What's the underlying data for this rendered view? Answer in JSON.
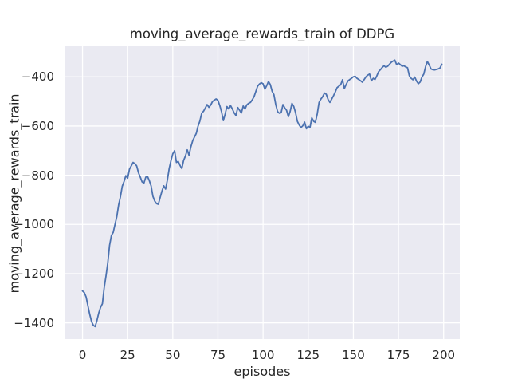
{
  "chart_data": {
    "type": "line",
    "title": "moving_average_rewards_train of DDPG",
    "xlabel": "episodes",
    "ylabel": "moving_average_rewards_train",
    "grid": true,
    "legend": false,
    "xlim": [
      -9.95,
      208.95
    ],
    "ylim": [
      -1466,
      -276
    ],
    "xticks": {
      "values": [
        0,
        25,
        50,
        75,
        100,
        125,
        150,
        175,
        200
      ],
      "labels": [
        "0",
        "25",
        "50",
        "75",
        "100",
        "125",
        "150",
        "175",
        "200"
      ]
    },
    "yticks": {
      "values": [
        -400,
        -600,
        -800,
        -1000,
        -1200,
        -1400
      ],
      "labels": [
        "−400",
        "−600",
        "−800",
        "−1000",
        "−1200",
        "−1400"
      ]
    },
    "style": {
      "axes_bg": "#eaeaf2",
      "grid_color": "#ffffff",
      "line_color": "#4c72b0",
      "text_color": "#262626",
      "figure_bg": "#ffffff"
    },
    "series": [
      {
        "name": "moving_average_rewards_train",
        "color": "#4c72b0",
        "x_start": 0,
        "x_step": 1,
        "values": [
          -1270,
          -1277,
          -1295,
          -1330,
          -1365,
          -1395,
          -1410,
          -1415,
          -1390,
          -1360,
          -1337,
          -1322,
          -1258,
          -1210,
          -1155,
          -1085,
          -1045,
          -1032,
          -1000,
          -968,
          -920,
          -888,
          -845,
          -825,
          -802,
          -812,
          -775,
          -762,
          -748,
          -753,
          -762,
          -790,
          -808,
          -827,
          -832,
          -808,
          -805,
          -822,
          -843,
          -886,
          -905,
          -915,
          -918,
          -890,
          -865,
          -843,
          -856,
          -820,
          -773,
          -740,
          -713,
          -700,
          -748,
          -744,
          -760,
          -773,
          -740,
          -722,
          -697,
          -719,
          -685,
          -660,
          -645,
          -630,
          -600,
          -580,
          -548,
          -540,
          -527,
          -513,
          -524,
          -515,
          -500,
          -495,
          -490,
          -496,
          -517,
          -542,
          -578,
          -552,
          -521,
          -531,
          -517,
          -531,
          -547,
          -557,
          -525,
          -536,
          -547,
          -519,
          -531,
          -514,
          -508,
          -504,
          -494,
          -481,
          -459,
          -438,
          -429,
          -424,
          -428,
          -450,
          -436,
          -419,
          -431,
          -459,
          -472,
          -512,
          -541,
          -548,
          -546,
          -513,
          -526,
          -536,
          -562,
          -541,
          -508,
          -521,
          -546,
          -581,
          -596,
          -606,
          -599,
          -584,
          -611,
          -601,
          -606,
          -567,
          -581,
          -585,
          -551,
          -504,
          -491,
          -481,
          -466,
          -471,
          -492,
          -504,
          -491,
          -477,
          -461,
          -444,
          -438,
          -432,
          -412,
          -448,
          -431,
          -417,
          -411,
          -406,
          -400,
          -398,
          -406,
          -411,
          -416,
          -422,
          -411,
          -400,
          -393,
          -389,
          -416,
          -406,
          -411,
          -396,
          -379,
          -371,
          -362,
          -355,
          -361,
          -357,
          -349,
          -341,
          -336,
          -332,
          -351,
          -344,
          -350,
          -357,
          -355,
          -360,
          -363,
          -396,
          -406,
          -412,
          -401,
          -417,
          -428,
          -421,
          -401,
          -389,
          -358,
          -338,
          -352,
          -368,
          -371,
          -372,
          -370,
          -368,
          -364,
          -349
        ]
      }
    ]
  }
}
